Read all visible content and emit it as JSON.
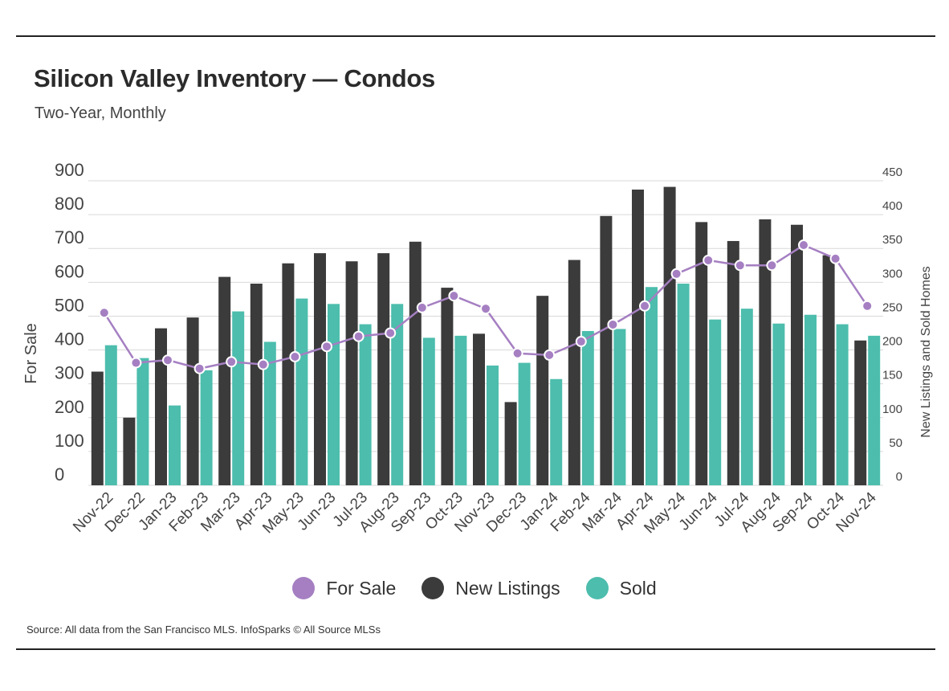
{
  "header": {
    "title": "Silicon Valley Inventory — Condos",
    "subtitle": "Two-Year, Monthly"
  },
  "footer": {
    "source": "Source:  All data from the San Francisco MLS. InfoSparks © All Source MLSs"
  },
  "colors": {
    "for_sale": "#a57fc2",
    "new_listings": "#3b3b3b",
    "sold": "#4dbdad",
    "grid": "#d9d9d9",
    "axis_text": "#444444"
  },
  "chart_data": {
    "type": "bar",
    "categories": [
      "Nov-22",
      "Dec-22",
      "Jan-23",
      "Feb-23",
      "Mar-23",
      "Apr-23",
      "May-23",
      "Jun-23",
      "Jul-23",
      "Aug-23",
      "Sep-23",
      "Oct-23",
      "Nov-23",
      "Dec-23",
      "Jan-24",
      "Feb-24",
      "Mar-24",
      "Apr-24",
      "May-24",
      "Jun-24",
      "Jul-24",
      "Aug-24",
      "Sep-24",
      "Oct-24",
      "Nov-24"
    ],
    "ylabel": "For Sale",
    "y2label": "New Listings and Sold Homes",
    "ylim": [
      0,
      900
    ],
    "y2lim": [
      0,
      450
    ],
    "yticks": [
      0,
      100,
      200,
      300,
      400,
      500,
      600,
      700,
      800,
      900
    ],
    "y2ticks": [
      0,
      50,
      100,
      150,
      200,
      250,
      300,
      350,
      400,
      450
    ],
    "grid": true,
    "legend_position": "bottom",
    "series": [
      {
        "name": "For Sale",
        "type": "line",
        "axis": "left",
        "color": "#a57fc2",
        "values": [
          510,
          362,
          370,
          345,
          365,
          357,
          380,
          410,
          440,
          450,
          525,
          560,
          522,
          390,
          385,
          425,
          475,
          530,
          625,
          665,
          650,
          650,
          710,
          670,
          530
        ]
      },
      {
        "name": "New Listings",
        "type": "bar",
        "axis": "right",
        "color": "#3b3b3b",
        "values": [
          168,
          100,
          232,
          248,
          308,
          298,
          328,
          343,
          331,
          343,
          360,
          292,
          224,
          123,
          280,
          333,
          398,
          437,
          441,
          389,
          361,
          393,
          385,
          340,
          214
        ]
      },
      {
        "name": "Sold",
        "type": "bar",
        "axis": "right",
        "color": "#4dbdad",
        "values": [
          207,
          188,
          118,
          170,
          257,
          212,
          276,
          268,
          238,
          268,
          218,
          221,
          177,
          181,
          157,
          228,
          231,
          293,
          298,
          245,
          261,
          239,
          252,
          238,
          221
        ]
      }
    ]
  }
}
